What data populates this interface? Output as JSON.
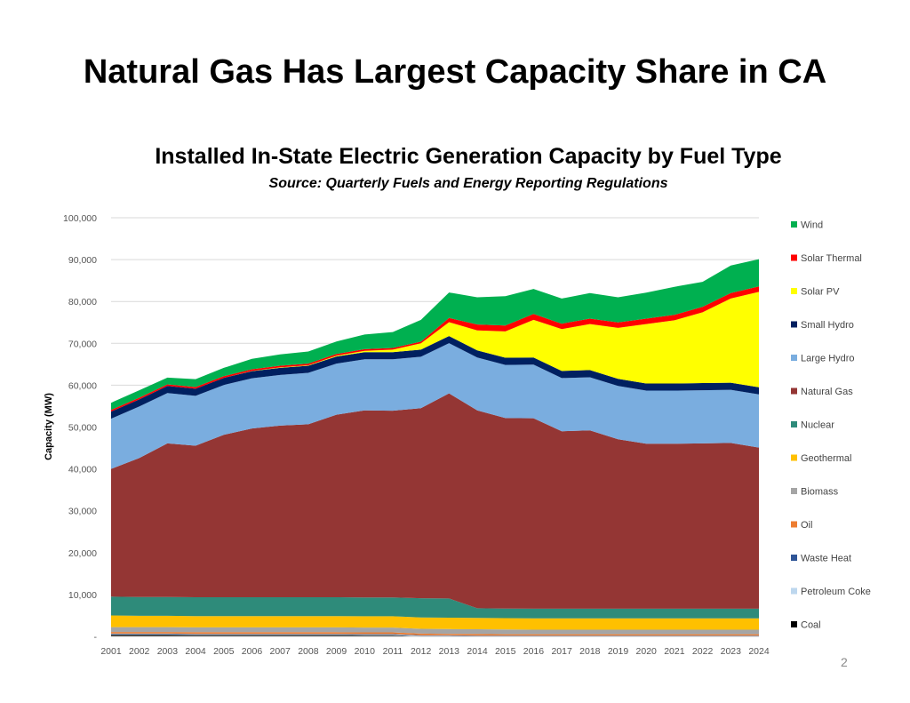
{
  "slide": {
    "title": "Natural Gas Has Largest Capacity Share in CA",
    "page_number": "2"
  },
  "chart_data": {
    "type": "area",
    "stacked": true,
    "title": "Installed In-State Electric Generation Capacity by Fuel Type",
    "subtitle": "Source: Quarterly Fuels and Energy Reporting Regulations",
    "xlabel": "",
    "ylabel": "Capacity (MW)",
    "ylim": [
      0,
      100000
    ],
    "y_ticks": [
      0,
      10000,
      20000,
      30000,
      40000,
      50000,
      60000,
      70000,
      80000,
      90000,
      100000
    ],
    "y_tick_labels": [
      "-",
      "10,000",
      "20,000",
      "30,000",
      "40,000",
      "50,000",
      "60,000",
      "70,000",
      "80,000",
      "90,000",
      "100,000"
    ],
    "grid": true,
    "legend_position": "right",
    "x": [
      "2001",
      "2002",
      "2003",
      "2004",
      "2005",
      "2006",
      "2007",
      "2008",
      "2009",
      "2010",
      "2011",
      "2012",
      "2013",
      "2014",
      "2015",
      "2016",
      "2017",
      "2018",
      "2019",
      "2020",
      "2021",
      "2022",
      "2023",
      "2024"
    ],
    "series": [
      {
        "name": "Coal",
        "color": "#000000",
        "values": [
          400,
          400,
          400,
          350,
          350,
          350,
          350,
          350,
          350,
          300,
          300,
          50,
          50,
          0,
          0,
          0,
          0,
          0,
          0,
          0,
          0,
          0,
          0,
          0
        ]
      },
      {
        "name": "Petroleum Coke",
        "color": "#bdd7ee",
        "values": [
          150,
          150,
          150,
          150,
          150,
          150,
          150,
          150,
          150,
          150,
          150,
          100,
          100,
          100,
          100,
          100,
          100,
          100,
          100,
          100,
          100,
          100,
          100,
          100
        ]
      },
      {
        "name": "Waste Heat",
        "color": "#2f5597",
        "values": [
          100,
          100,
          100,
          100,
          100,
          100,
          100,
          100,
          100,
          100,
          100,
          100,
          100,
          100,
          100,
          100,
          100,
          100,
          100,
          100,
          100,
          100,
          100,
          100
        ]
      },
      {
        "name": "Oil",
        "color": "#ed7d31",
        "values": [
          400,
          400,
          400,
          400,
          400,
          400,
          400,
          400,
          400,
          400,
          400,
          400,
          350,
          350,
          300,
          300,
          300,
          300,
          300,
          300,
          300,
          300,
          300,
          300
        ]
      },
      {
        "name": "Biomass",
        "color": "#a5a5a5",
        "values": [
          1150,
          1150,
          1150,
          1150,
          1150,
          1150,
          1150,
          1150,
          1150,
          1150,
          1150,
          1150,
          1150,
          1150,
          1150,
          1100,
          1100,
          1100,
          1100,
          1100,
          1100,
          1100,
          1100,
          1100
        ]
      },
      {
        "name": "Geothermal",
        "color": "#ffc000",
        "values": [
          2800,
          2700,
          2700,
          2700,
          2700,
          2700,
          2700,
          2700,
          2700,
          2700,
          2700,
          2700,
          2700,
          2700,
          2700,
          2700,
          2700,
          2700,
          2700,
          2700,
          2700,
          2700,
          2700,
          2700
        ]
      },
      {
        "name": "Nuclear",
        "color": "#2e8b7a",
        "values": [
          4500,
          4500,
          4500,
          4500,
          4500,
          4500,
          4500,
          4500,
          4500,
          4500,
          4500,
          4600,
          4600,
          2300,
          2300,
          2300,
          2300,
          2300,
          2300,
          2300,
          2300,
          2300,
          2300,
          2300
        ]
      },
      {
        "name": "Natural Gas",
        "color": "#943634",
        "values": [
          30500,
          33200,
          36700,
          36200,
          38800,
          40300,
          41000,
          41300,
          43600,
          44700,
          44600,
          45400,
          49000,
          47300,
          45500,
          45500,
          42400,
          42600,
          40500,
          39400,
          39400,
          39500,
          39600,
          38500
        ]
      },
      {
        "name": "Large Hydro",
        "color": "#7aaddf",
        "values": [
          12000,
          12300,
          12000,
          11900,
          11900,
          12000,
          12100,
          12300,
          12200,
          12200,
          12300,
          12300,
          12000,
          12600,
          12700,
          12800,
          12700,
          12700,
          12700,
          12700,
          12700,
          12700,
          12700,
          12700
        ]
      },
      {
        "name": "Small Hydro",
        "color": "#002060",
        "values": [
          1700,
          1700,
          1700,
          1700,
          1700,
          1700,
          1700,
          1700,
          1700,
          1700,
          1700,
          1700,
          1700,
          1700,
          1700,
          1700,
          1700,
          1700,
          1700,
          1700,
          1700,
          1700,
          1700,
          1700
        ]
      },
      {
        "name": "Solar PV",
        "color": "#ffff00",
        "values": [
          0,
          0,
          0,
          0,
          0,
          50,
          100,
          100,
          200,
          300,
          600,
          1500,
          3300,
          4800,
          6300,
          9000,
          10000,
          11000,
          12200,
          14200,
          15100,
          16900,
          20100,
          22800
        ]
      },
      {
        "name": "Solar Thermal",
        "color": "#ff0000",
        "values": [
          400,
          400,
          400,
          400,
          400,
          400,
          400,
          400,
          400,
          400,
          400,
          400,
          1000,
          1400,
          1400,
          1400,
          1300,
          1300,
          1300,
          1300,
          1300,
          1300,
          1300,
          1300
        ]
      },
      {
        "name": "Wind",
        "color": "#00b050",
        "values": [
          1700,
          1800,
          1600,
          1900,
          2000,
          2500,
          2700,
          2900,
          3000,
          3500,
          3800,
          5200,
          6100,
          6500,
          7000,
          6000,
          6000,
          6100,
          6000,
          6200,
          6700,
          6000,
          6600,
          6500
        ]
      }
    ]
  }
}
